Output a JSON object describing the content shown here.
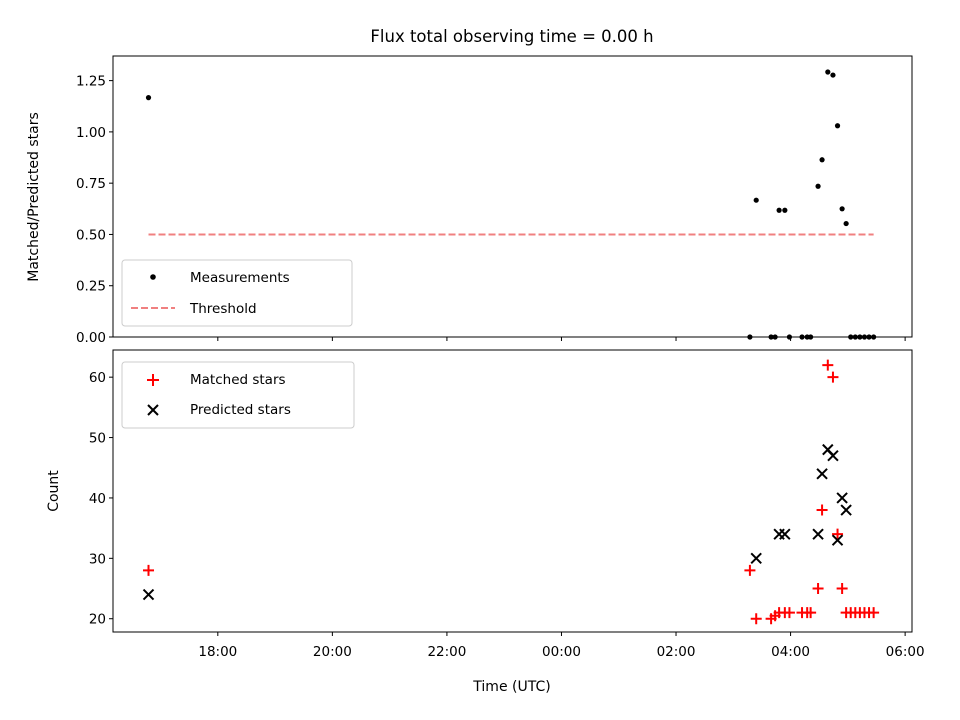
{
  "chart_data": [
    {
      "type": "scatter",
      "title": "Flux total observing time = 0.00 h",
      "ylabel": "Matched/Predicted stars",
      "xlabel": "",
      "x_unit": "hours since 16:00 UTC",
      "xlim": [
        0.17,
        14.12
      ],
      "ylim": [
        0,
        1.37
      ],
      "yticks": [
        "0.00",
        "0.25",
        "0.50",
        "0.75",
        "1.00",
        "1.25"
      ],
      "ytick_values": [
        0,
        0.25,
        0.5,
        0.75,
        1.0,
        1.25
      ],
      "legend_loc": "lower left",
      "series": [
        {
          "name": "Measurements",
          "marker": "dot",
          "color": "#000000",
          "points": [
            [
              0.79,
              1.167
            ],
            [
              11.29,
              0.0
            ],
            [
              11.4,
              0.667
            ],
            [
              11.66,
              0.0
            ],
            [
              11.73,
              0.0
            ],
            [
              11.8,
              0.618
            ],
            [
              11.9,
              0.618
            ],
            [
              11.98,
              0.0
            ],
            [
              12.2,
              0.0
            ],
            [
              12.29,
              0.0
            ],
            [
              12.35,
              0.0
            ],
            [
              12.48,
              0.735
            ],
            [
              12.55,
              0.864
            ],
            [
              12.65,
              1.292
            ],
            [
              12.74,
              1.277
            ],
            [
              12.82,
              1.03
            ],
            [
              12.9,
              0.625
            ],
            [
              12.97,
              0.553
            ],
            [
              13.05,
              0.0
            ],
            [
              13.13,
              0.0
            ],
            [
              13.21,
              0.0
            ],
            [
              13.29,
              0.0
            ],
            [
              13.37,
              0.0
            ],
            [
              13.45,
              0.0
            ]
          ]
        },
        {
          "name": "Threshold",
          "type": "line",
          "dashed": true,
          "color": "#f08080",
          "points": [
            [
              0.79,
              0.5
            ],
            [
              13.45,
              0.5
            ]
          ]
        }
      ]
    },
    {
      "type": "scatter",
      "title": "",
      "ylabel": "Count",
      "xlabel": "Time (UTC)",
      "x_unit": "hours since 16:00 UTC",
      "xlim": [
        0.17,
        14.12
      ],
      "ylim": [
        17.8,
        64.5
      ],
      "yticks": [
        "20",
        "30",
        "40",
        "50",
        "60"
      ],
      "ytick_values": [
        20,
        30,
        40,
        50,
        60
      ],
      "xticks": [
        "18:00",
        "20:00",
        "22:00",
        "00:00",
        "02:00",
        "04:00",
        "06:00"
      ],
      "xtick_values": [
        2,
        4,
        6,
        8,
        10,
        12,
        14
      ],
      "legend_loc": "upper left",
      "series": [
        {
          "name": "Matched stars",
          "marker": "plus",
          "color": "#ff0000",
          "points": [
            [
              0.79,
              28
            ],
            [
              11.29,
              28
            ],
            [
              11.4,
              20
            ],
            [
              11.66,
              20
            ],
            [
              11.73,
              20.5
            ],
            [
              11.8,
              21
            ],
            [
              11.9,
              21
            ],
            [
              11.98,
              21
            ],
            [
              12.2,
              21
            ],
            [
              12.29,
              21
            ],
            [
              12.35,
              21
            ],
            [
              12.48,
              25
            ],
            [
              12.55,
              38
            ],
            [
              12.65,
              62
            ],
            [
              12.74,
              60
            ],
            [
              12.82,
              34
            ],
            [
              12.9,
              25
            ],
            [
              12.97,
              21
            ],
            [
              13.05,
              21
            ],
            [
              13.13,
              21
            ],
            [
              13.21,
              21
            ],
            [
              13.29,
              21
            ],
            [
              13.37,
              21
            ],
            [
              13.45,
              21
            ]
          ]
        },
        {
          "name": "Predicted stars",
          "marker": "x",
          "color": "#000000",
          "points": [
            [
              0.79,
              24
            ],
            [
              11.4,
              30
            ],
            [
              11.8,
              34
            ],
            [
              11.9,
              34
            ],
            [
              12.48,
              34
            ],
            [
              12.55,
              44
            ],
            [
              12.65,
              48
            ],
            [
              12.74,
              47
            ],
            [
              12.82,
              33
            ],
            [
              12.9,
              40
            ],
            [
              12.97,
              38
            ]
          ]
        }
      ]
    }
  ]
}
